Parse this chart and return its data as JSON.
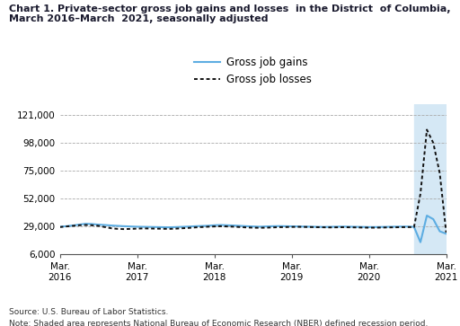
{
  "title_line1": "Chart 1. Private-sector gross job gains and losses  in the District  of Columbia,",
  "title_line2": "March 2016–March  2021, seasonally adjusted",
  "source": "Source: U.S. Bureau of Labor Statistics.",
  "note": "Note: Shaded area represents National Bureau of Economic Research (NBER) defined recession period.",
  "legend_gains": "Gross job gains",
  "legend_losses": "Gross job losses",
  "gains_color": "#5DADE2",
  "losses_color": "#111111",
  "recession_color": "#D5E8F5",
  "ylim": [
    6000,
    130000
  ],
  "yticks": [
    6000,
    29000,
    52000,
    75000,
    98000,
    121000
  ],
  "ytick_labels": [
    "6,000",
    "29,000",
    "52,000",
    "75,000",
    "98,000",
    "121,000"
  ],
  "x_values": [
    0,
    1,
    2,
    3,
    4,
    5,
    6,
    7,
    8,
    9,
    10,
    11,
    12,
    13,
    14,
    15,
    16,
    17,
    18,
    19,
    20,
    21,
    22,
    23,
    24,
    25,
    26,
    27,
    28,
    29,
    30,
    31,
    32,
    33,
    34,
    35,
    36,
    37,
    38,
    39,
    40,
    41,
    42,
    43,
    44,
    45,
    46,
    47,
    48,
    49,
    50,
    51,
    52,
    53,
    54,
    55,
    56,
    57,
    58,
    59,
    60
  ],
  "gains": [
    28800,
    29200,
    29800,
    30500,
    31200,
    31000,
    30500,
    30200,
    29800,
    29500,
    29200,
    29000,
    28800,
    28700,
    28600,
    28500,
    28400,
    28300,
    28500,
    28700,
    28900,
    29200,
    29400,
    29600,
    30000,
    30200,
    30000,
    29800,
    29500,
    29200,
    29000,
    28800,
    29000,
    29200,
    29300,
    29200,
    29100,
    29000,
    28900,
    28800,
    28700,
    28600,
    28700,
    28800,
    28900,
    28800,
    28700,
    28600,
    28500,
    28500,
    28600,
    28700,
    28800,
    28900,
    28900,
    28700,
    16000,
    38000,
    35000,
    25000,
    23000
  ],
  "losses": [
    28500,
    29000,
    29500,
    30000,
    30200,
    30000,
    29500,
    28500,
    27500,
    27000,
    26800,
    27000,
    27200,
    27400,
    27300,
    27200,
    27100,
    27000,
    27200,
    27500,
    27800,
    28200,
    28500,
    28800,
    29000,
    29200,
    29000,
    28800,
    28500,
    28200,
    28000,
    27900,
    28000,
    28200,
    28400,
    28500,
    28600,
    28700,
    28600,
    28500,
    28400,
    28300,
    28200,
    28300,
    28400,
    28300,
    28200,
    28100,
    28000,
    28000,
    28100,
    28200,
    28300,
    28400,
    28500,
    28400,
    56000,
    109000,
    98000,
    73000,
    24000
  ],
  "xtick_positions": [
    0,
    12,
    24,
    36,
    48,
    60
  ],
  "xtick_labels": [
    "Mar.\n2016",
    "Mar.\n2017",
    "Mar.\n2018",
    "Mar.\n2019",
    "Mar.\n2020",
    "Mar.\n2021"
  ],
  "recession_start": 55,
  "recession_end": 60
}
